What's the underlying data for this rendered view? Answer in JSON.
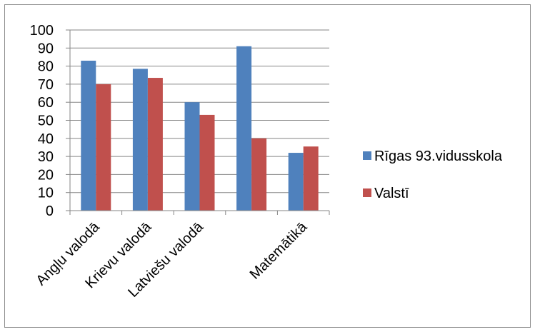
{
  "chart_data": {
    "type": "bar",
    "categories": [
      "Angļu valodā",
      "Krievu valodā",
      "Latviešu valodā",
      "",
      "Matemātikā"
    ],
    "series": [
      {
        "name": "Rīgas 93.vidusskola",
        "color": "#4f81bd",
        "values": [
          83,
          78.5,
          60,
          91,
          32
        ]
      },
      {
        "name": "Valstī",
        "color": "#c0504d",
        "values": [
          70,
          73.5,
          53,
          40,
          35.5
        ]
      }
    ],
    "ylim": [
      0,
      100
    ],
    "yticks": [
      0,
      10,
      20,
      30,
      40,
      50,
      60,
      70,
      80,
      90,
      100
    ],
    "grid": true,
    "legend": "right",
    "title": "",
    "xlabel": "",
    "ylabel": ""
  }
}
